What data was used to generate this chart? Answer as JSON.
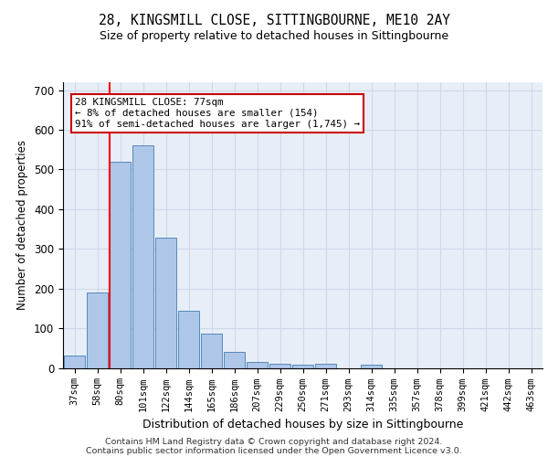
{
  "title": "28, KINGSMILL CLOSE, SITTINGBOURNE, ME10 2AY",
  "subtitle": "Size of property relative to detached houses in Sittingbourne",
  "xlabel": "Distribution of detached houses by size in Sittingbourne",
  "ylabel": "Number of detached properties",
  "bar_values": [
    30,
    190,
    520,
    560,
    328,
    143,
    86,
    40,
    14,
    10,
    8,
    10,
    0,
    7,
    0,
    0,
    0,
    0,
    0,
    0,
    0
  ],
  "bar_labels": [
    "37sqm",
    "58sqm",
    "80sqm",
    "101sqm",
    "122sqm",
    "144sqm",
    "165sqm",
    "186sqm",
    "207sqm",
    "229sqm",
    "250sqm",
    "271sqm",
    "293sqm",
    "314sqm",
    "335sqm",
    "357sqm",
    "378sqm",
    "399sqm",
    "421sqm",
    "442sqm",
    "463sqm"
  ],
  "bar_color": "#aec6e8",
  "bar_edge_color": "#5588bb",
  "grid_color": "#d0d8e8",
  "bg_color": "#e8eef8",
  "red_line_index": 2,
  "annotation_line1": "28 KINGSMILL CLOSE: 77sqm",
  "annotation_line2": "← 8% of detached houses are smaller (154)",
  "annotation_line3": "91% of semi-detached houses are larger (1,745) →",
  "annotation_box_color": "#ffffff",
  "annotation_border_color": "#cc0000",
  "footer_line1": "Contains HM Land Registry data © Crown copyright and database right 2024.",
  "footer_line2": "Contains public sector information licensed under the Open Government Licence v3.0.",
  "ylim": [
    0,
    720
  ],
  "yticks": [
    0,
    100,
    200,
    300,
    400,
    500,
    600,
    700
  ]
}
